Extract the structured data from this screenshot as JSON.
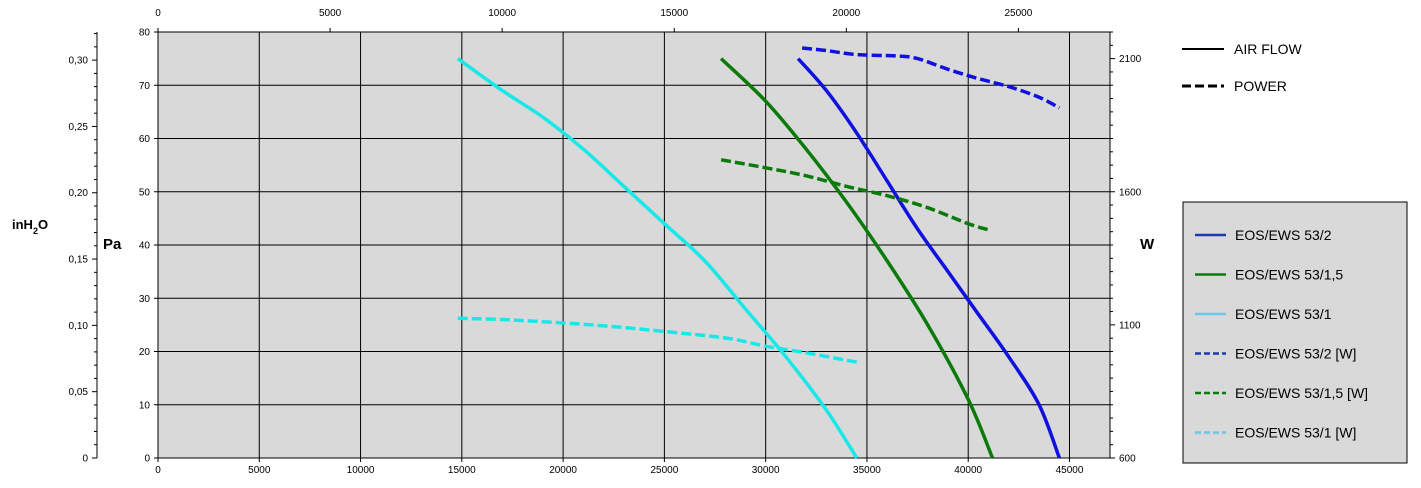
{
  "chart_data": {
    "type": "line",
    "title": "",
    "x_bottom": {
      "label": "",
      "range": [
        0,
        47000
      ],
      "ticks": [
        0,
        5000,
        10000,
        15000,
        20000,
        25000,
        30000,
        35000,
        40000,
        45000
      ]
    },
    "x_top": {
      "label": "",
      "range": [
        0,
        27661
      ],
      "ticks": [
        0,
        5000,
        10000,
        15000,
        20000,
        25000
      ]
    },
    "y_left_pa": {
      "label": "Pa",
      "range": [
        0,
        80
      ],
      "ticks": [
        0,
        10,
        20,
        30,
        40,
        50,
        60,
        70,
        80
      ]
    },
    "y_left_inh2o": {
      "label_main": "inH",
      "label_sub": "2",
      "label_end": "O",
      "range": [
        0,
        0.3212
      ],
      "ticks": [
        "0",
        "0,05",
        "0,10",
        "0,15",
        "0,20",
        "0,25",
        "0,30"
      ],
      "tick_values": [
        0,
        0.05,
        0.1,
        0.15,
        0.2,
        0.25,
        0.3
      ]
    },
    "y_right_w": {
      "label": "W",
      "range": [
        600,
        2200
      ],
      "ticks": [
        600,
        1100,
        1600,
        2100
      ]
    },
    "grid": true,
    "style_legend": [
      {
        "label": "AIR FLOW",
        "style": "solid"
      },
      {
        "label": "POWER",
        "style": "dashed"
      }
    ],
    "series": [
      {
        "name": "EOS/EWS 53/2",
        "color": "#1010e0",
        "style": "solid",
        "axis": "pa",
        "points": [
          [
            31600,
            75
          ],
          [
            33000,
            69
          ],
          [
            34500,
            61
          ],
          [
            36000,
            52
          ],
          [
            37500,
            43
          ],
          [
            39000,
            35
          ],
          [
            40500,
            27
          ],
          [
            42000,
            19
          ],
          [
            43500,
            10
          ],
          [
            44500,
            0
          ]
        ]
      },
      {
        "name": "EOS/EWS 53/1,5",
        "color": "#0a7a0a",
        "style": "solid",
        "axis": "pa",
        "points": [
          [
            27800,
            75
          ],
          [
            30000,
            67
          ],
          [
            32000,
            58
          ],
          [
            34000,
            48
          ],
          [
            36000,
            37
          ],
          [
            38000,
            25
          ],
          [
            40000,
            11
          ],
          [
            41200,
            0
          ]
        ]
      },
      {
        "name": "EOS/EWS 53/1",
        "color": "#18e8e8",
        "style": "solid",
        "axis": "pa",
        "points": [
          [
            14800,
            75
          ],
          [
            17000,
            69
          ],
          [
            19000,
            64
          ],
          [
            21000,
            58
          ],
          [
            23000,
            51
          ],
          [
            25000,
            44
          ],
          [
            27000,
            37
          ],
          [
            29000,
            28
          ],
          [
            31000,
            19
          ],
          [
            33000,
            9
          ],
          [
            34500,
            0
          ]
        ]
      },
      {
        "name": "EOS/EWS 53/2 [W]",
        "color": "#1010e0",
        "style": "dashed",
        "axis": "w",
        "points": [
          [
            31800,
            2140
          ],
          [
            33000,
            2130
          ],
          [
            34500,
            2115
          ],
          [
            36500,
            2110
          ],
          [
            37500,
            2100
          ],
          [
            39000,
            2060
          ],
          [
            40500,
            2025
          ],
          [
            42000,
            1995
          ],
          [
            43500,
            1955
          ],
          [
            44500,
            1915
          ]
        ]
      },
      {
        "name": "EOS/EWS 53/1,5 [W]",
        "color": "#0a7a0a",
        "style": "dashed",
        "axis": "w",
        "points": [
          [
            27800,
            1720
          ],
          [
            30000,
            1690
          ],
          [
            32000,
            1660
          ],
          [
            34000,
            1620
          ],
          [
            36000,
            1585
          ],
          [
            38000,
            1540
          ],
          [
            40000,
            1480
          ],
          [
            41100,
            1455
          ]
        ]
      },
      {
        "name": "EOS/EWS 53/1 [W]",
        "color": "#18e8e8",
        "style": "dashed",
        "axis": "w",
        "points": [
          [
            14800,
            1125
          ],
          [
            17000,
            1120
          ],
          [
            19000,
            1112
          ],
          [
            21000,
            1102
          ],
          [
            23000,
            1090
          ],
          [
            25000,
            1075
          ],
          [
            27000,
            1060
          ],
          [
            28500,
            1045
          ],
          [
            30000,
            1020
          ],
          [
            32000,
            995
          ],
          [
            34500,
            960
          ]
        ]
      }
    ],
    "colors": {
      "plot_bg": "#d9d9d9",
      "legend_bg": "#d9d9d9"
    }
  }
}
